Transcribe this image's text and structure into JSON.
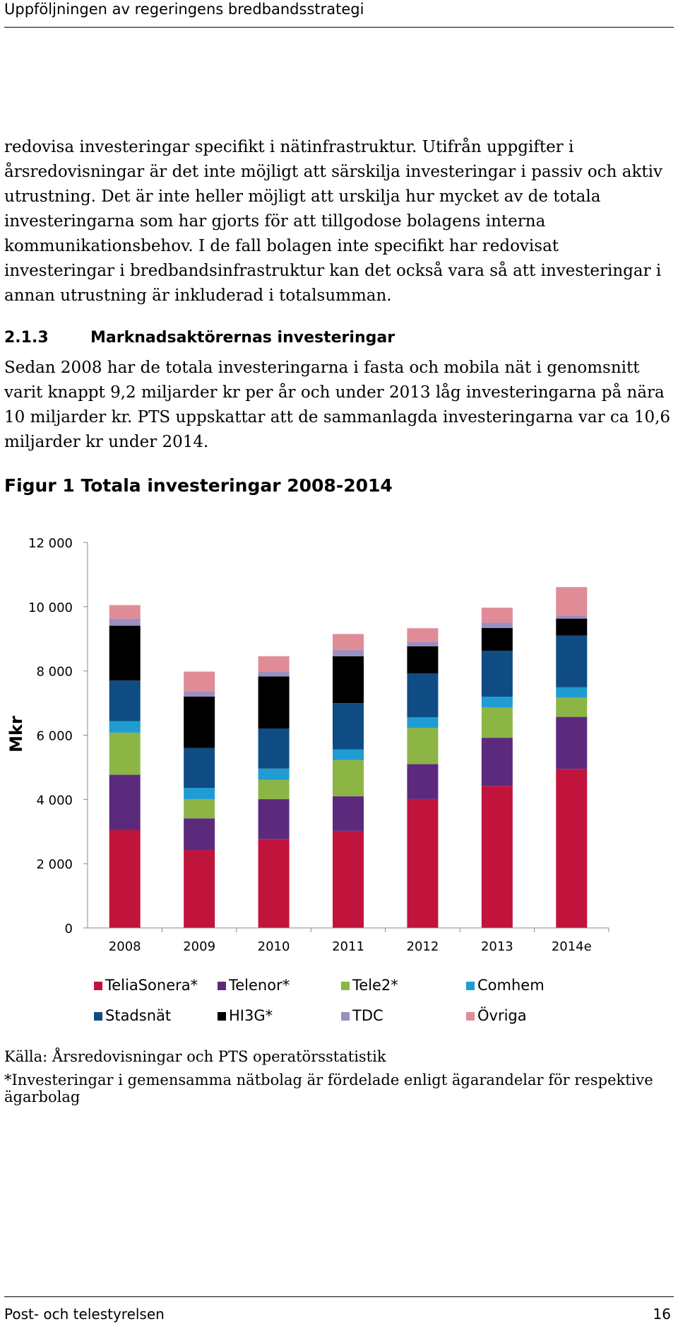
{
  "header": {
    "title": "Uppföljningen av regeringens bredbandsstrategi"
  },
  "body": {
    "paragraph1": "redovisa investeringar specifikt i nätinfrastruktur. Utifrån uppgifter i årsredovisningar är det inte möjligt att särskilja investeringar i passiv och aktiv utrustning. Det är inte heller möjligt att urskilja hur mycket av de totala investeringarna som har gjorts för att tillgodose bolagens interna kommunikationsbehov. I de fall bolagen inte specifikt har redovisat investeringar i bredbandsinfrastruktur kan det också vara så att investeringar i annan utrustning är inkluderad i totalsumman.",
    "section_number": "2.1.3",
    "section_title": "Marknadsaktörernas investeringar",
    "paragraph2": "Sedan 2008 har de totala investeringarna i fasta och mobila nät i genomsnitt varit knappt 9,2 miljarder kr per år och under 2013 låg investeringarna på nära 10 miljarder kr. PTS uppskattar att de sammanlagda investeringarna var ca 10,6 miljarder kr under 2014.",
    "figure_title": "Figur 1 Totala investeringar 2008-2014"
  },
  "chart_data": {
    "type": "bar",
    "stacked": true,
    "ylabel": "Mkr",
    "ylim": [
      0,
      12000
    ],
    "yticks": [
      0,
      2000,
      4000,
      6000,
      8000,
      10000,
      12000
    ],
    "ytick_labels": [
      "0",
      "2 000",
      "4 000",
      "6 000",
      "8 000",
      "10 000",
      "12 000"
    ],
    "categories": [
      "2008",
      "2009",
      "2010",
      "2011",
      "2012",
      "2013",
      "2014e"
    ],
    "grid": false,
    "legend_position": "bottom",
    "series": [
      {
        "name": "TeliaSonera*",
        "color": "#c0143c",
        "values": [
          3050,
          2420,
          2770,
          3020,
          4010,
          4420,
          4950
        ]
      },
      {
        "name": "Telenor*",
        "color": "#5b2a7d",
        "values": [
          1720,
          990,
          1240,
          1080,
          1090,
          1500,
          1620
        ]
      },
      {
        "name": "Tele2*",
        "color": "#8cb545",
        "values": [
          1310,
          600,
          600,
          1130,
          1130,
          950,
          600
        ]
      },
      {
        "name": "Comhem",
        "color": "#1f9cd1",
        "values": [
          360,
          350,
          350,
          330,
          330,
          330,
          320
        ]
      },
      {
        "name": "Stadsnät",
        "color": "#0f4c84",
        "values": [
          1260,
          1240,
          1250,
          1440,
          1360,
          1430,
          1610
        ]
      },
      {
        "name": "HI3G*",
        "color": "#000000",
        "values": [
          1710,
          1600,
          1620,
          1460,
          850,
          710,
          530
        ]
      },
      {
        "name": "TDC",
        "color": "#9c8ec0",
        "values": [
          220,
          170,
          150,
          200,
          140,
          160,
          90
        ]
      },
      {
        "name": "Övriga",
        "color": "#e08c97",
        "values": [
          420,
          610,
          480,
          490,
          420,
          470,
          890
        ]
      }
    ]
  },
  "source": {
    "line1": "Källa: Årsredovisningar och PTS operatörsstatistik",
    "line2": "*Investeringar i gemensamma nätbolag är fördelade enligt ägarandelar för respektive ägarbolag"
  },
  "footer": {
    "left": "Post- och telestyrelsen",
    "page": "16"
  }
}
